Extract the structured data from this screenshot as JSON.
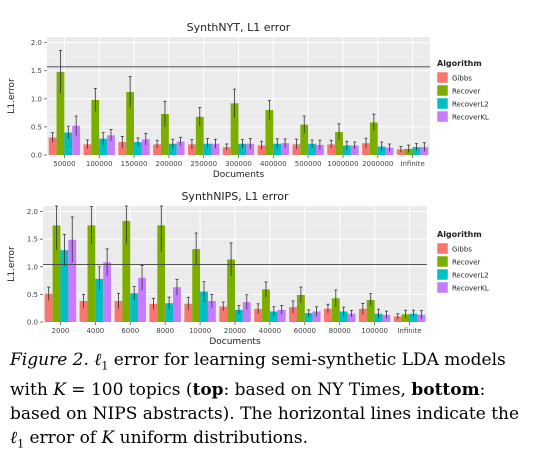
{
  "legend": {
    "title": "Algorithm",
    "entries": [
      {
        "name": "Gibbs",
        "color": "#F8766D"
      },
      {
        "name": "Recover",
        "color": "#7CAE00"
      },
      {
        "name": "RecoverL2",
        "color": "#00BFC4"
      },
      {
        "name": "RecoverKL",
        "color": "#C77CFF"
      }
    ]
  },
  "chart_data": [
    {
      "type": "bar",
      "title": "SynthNYT, L1 error",
      "xlabel": "Documents",
      "ylabel": "L1.error",
      "ylim": [
        0,
        2.1
      ],
      "yticks": [
        "0.0",
        "0.5",
        "1.0",
        "1.5",
        "2.0"
      ],
      "reference_line": 1.57,
      "grid": true,
      "legend_position": "right",
      "categories": [
        "50000",
        "100000",
        "150000",
        "200000",
        "250000",
        "300000",
        "400000",
        "500000",
        "1000000",
        "2000000",
        "Infinite"
      ],
      "series": [
        {
          "name": "Gibbs",
          "values": [
            0.31,
            0.19,
            0.23,
            0.19,
            0.19,
            0.14,
            0.17,
            0.19,
            0.19,
            0.21,
            0.1
          ]
        },
        {
          "name": "Recover",
          "values": [
            1.48,
            0.98,
            1.12,
            0.73,
            0.68,
            0.92,
            0.8,
            0.54,
            0.41,
            0.58,
            0.11
          ]
        },
        {
          "name": "RecoverL2",
          "values": [
            0.4,
            0.29,
            0.23,
            0.2,
            0.2,
            0.2,
            0.2,
            0.2,
            0.17,
            0.15,
            0.14
          ]
        },
        {
          "name": "RecoverKL",
          "values": [
            0.52,
            0.35,
            0.28,
            0.24,
            0.2,
            0.2,
            0.21,
            0.18,
            0.17,
            0.13,
            0.14
          ]
        }
      ]
    },
    {
      "type": "bar",
      "title": "SynthNIPS, L1 error",
      "xlabel": "Documents",
      "ylabel": "L1.error",
      "ylim": [
        0,
        2.1
      ],
      "yticks": [
        "0.0",
        "0.5",
        "1.0",
        "1.5",
        "2.0"
      ],
      "reference_line": 1.04,
      "grid": true,
      "legend_position": "right",
      "categories": [
        "2000",
        "4000",
        "6000",
        "8000",
        "10000",
        "20000",
        "40000",
        "60000",
        "80000",
        "100000",
        "Infinite"
      ],
      "series": [
        {
          "name": "Gibbs",
          "values": [
            0.51,
            0.38,
            0.38,
            0.33,
            0.33,
            0.28,
            0.24,
            0.27,
            0.24,
            0.24,
            0.1
          ]
        },
        {
          "name": "Recover",
          "values": [
            1.75,
            1.75,
            1.83,
            1.75,
            1.32,
            1.13,
            0.59,
            0.49,
            0.43,
            0.4,
            0.14
          ]
        },
        {
          "name": "RecoverL2",
          "values": [
            1.3,
            0.78,
            0.52,
            0.34,
            0.55,
            0.22,
            0.19,
            0.16,
            0.19,
            0.15,
            0.15
          ]
        },
        {
          "name": "RecoverKL",
          "values": [
            1.49,
            1.08,
            0.8,
            0.63,
            0.38,
            0.36,
            0.22,
            0.19,
            0.15,
            0.13,
            0.13
          ]
        }
      ]
    }
  ],
  "caption": {
    "label": "Figure 2.",
    "l1_symbol": "ℓ",
    "l1_sub": "1",
    "text_a": " error for learning semi-synthetic LDA models with ",
    "k": "K",
    "text_b": " = 100 topics (",
    "bold_top": "top",
    "text_c": ": based on NY Times, ",
    "bold_bottom": "bottom",
    "text_d": ": based on NIPS abstracts).  The horizontal lines indicate the ",
    "text_e": " error of ",
    "text_f": " uniform distributions."
  }
}
